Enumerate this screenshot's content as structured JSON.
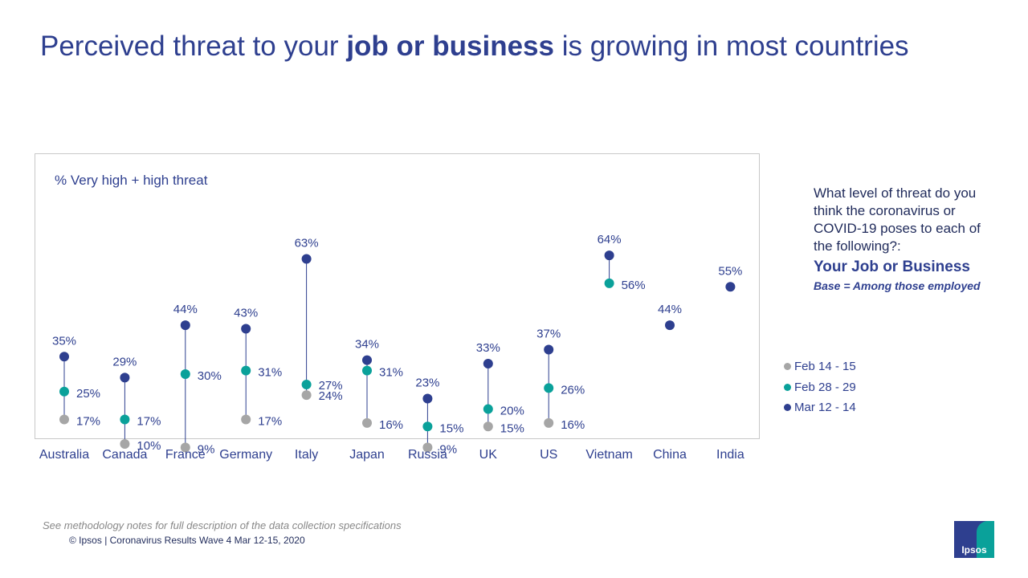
{
  "title": {
    "prefix": "Perceived threat to your",
    "bold": "job or business",
    "suffix": "is growing in most countries"
  },
  "question": {
    "text": "What level of threat do you think the coronavirus or COVID-19 poses to each of the following?:",
    "topic": "Your Job or Business",
    "base": "Base = Among those employed"
  },
  "footer": {
    "note": "See methodology notes for full description of the data collection specifications",
    "copyright": "© Ipsos | Coronavirus Results Wave 4 Mar 12-15, 2020"
  },
  "logo": {
    "text": "Ipsos"
  },
  "colors": {
    "feb14": "#a6a6a6",
    "feb28": "#0aa19a",
    "mar12": "#2e3f8f",
    "title": "#2e3f8f"
  },
  "chart_data": {
    "type": "dot-plot",
    "title": "Perceived threat to your job or business is growing in most countries",
    "ylabel": "% Very high + high threat",
    "ylim": [
      0,
      70
    ],
    "grid": false,
    "legend_position": "right",
    "categories": [
      "Australia",
      "Canada",
      "France",
      "Germany",
      "Italy",
      "Japan",
      "Russia",
      "UK",
      "US",
      "Vietnam",
      "China",
      "India"
    ],
    "series": [
      {
        "name": "Feb 14 - 15",
        "color": "#a6a6a6",
        "values": [
          17,
          10,
          9,
          17,
          24,
          16,
          9,
          15,
          16,
          null,
          null,
          null
        ],
        "labels": [
          "17%",
          "10%",
          "9%",
          "17%",
          "24%",
          "16%",
          "9%",
          "15%",
          "16%",
          null,
          null,
          null
        ]
      },
      {
        "name": "Feb 28 - 29",
        "color": "#0aa19a",
        "values": [
          25,
          17,
          30,
          31,
          27,
          31,
          15,
          20,
          26,
          56,
          null,
          null
        ],
        "labels": [
          "25%",
          "17%",
          "30%",
          "31%",
          "27%",
          "31%",
          "15%",
          "20%",
          "26%",
          "56%",
          null,
          null
        ]
      },
      {
        "name": "Mar 12 - 14",
        "color": "#2e3f8f",
        "values": [
          35,
          29,
          44,
          43,
          63,
          34,
          23,
          33,
          37,
          64,
          44,
          55
        ],
        "labels": [
          "35%",
          "29%",
          "44%",
          "43%",
          "63%",
          "34%",
          "23%",
          "33%",
          "37%",
          "64%",
          "44%",
          "55%"
        ]
      }
    ]
  }
}
